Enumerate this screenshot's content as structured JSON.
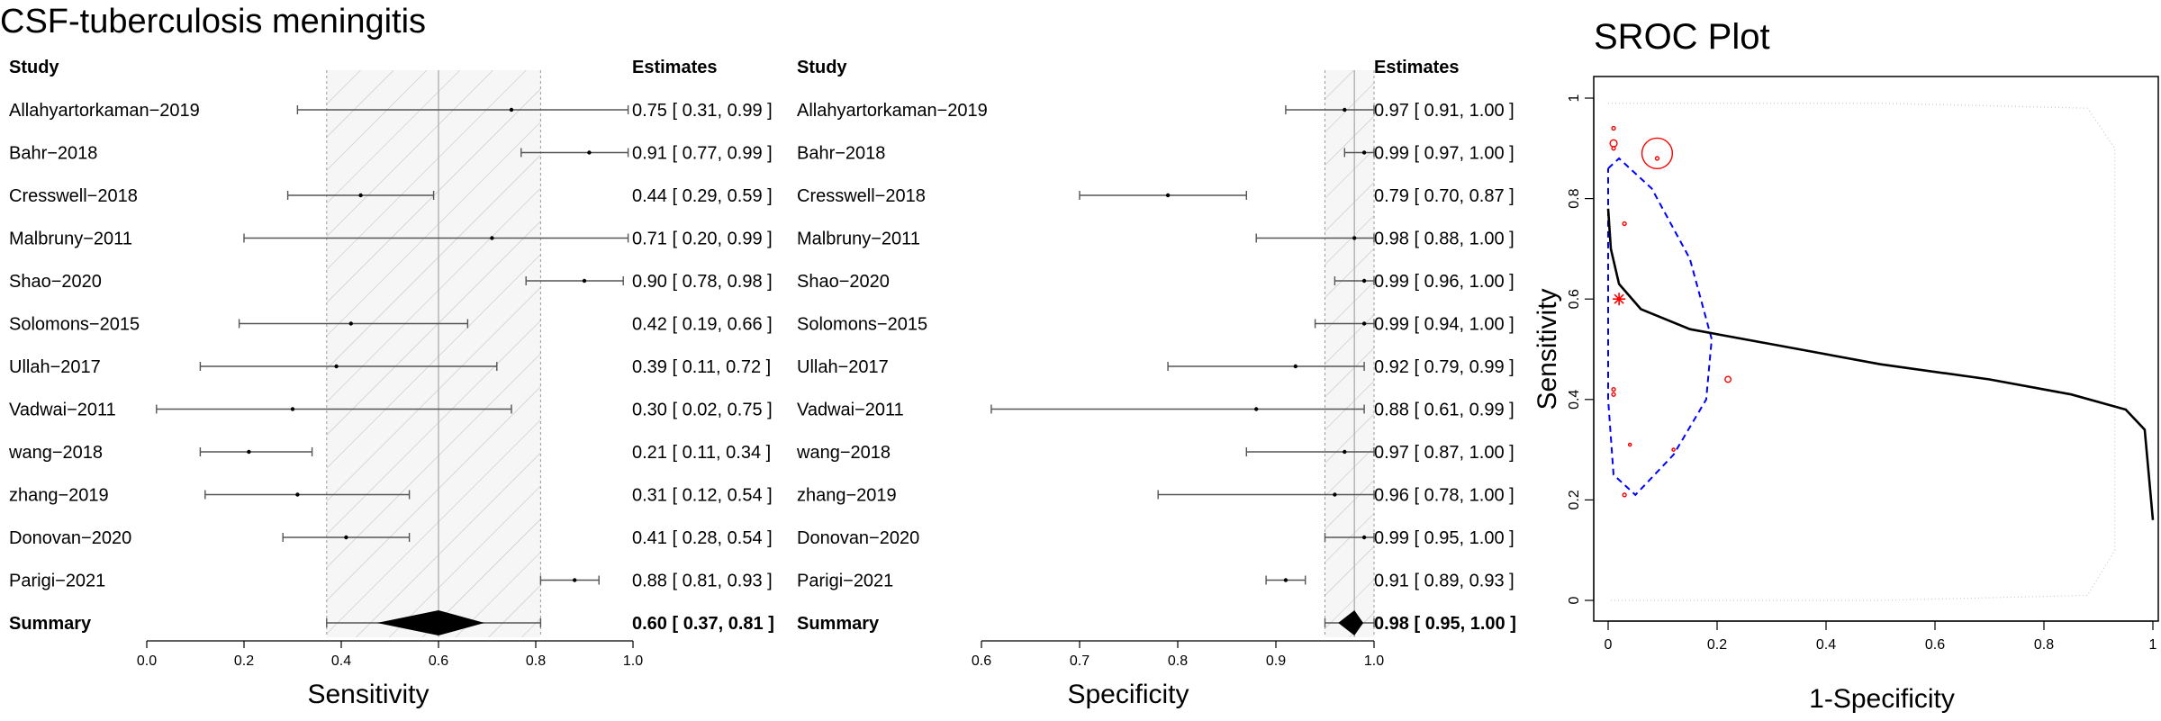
{
  "figure": {
    "main_title": "CSF-tuberculosis meningitis",
    "study_header": "Study",
    "estimates_header": "Estimates"
  },
  "chart_data": [
    {
      "type": "forest",
      "name": "sensitivity",
      "xlabel": "Sensitivity",
      "xlim": [
        0.0,
        1.0
      ],
      "ticks": [
        0.0,
        0.2,
        0.4,
        0.6,
        0.8,
        1.0
      ],
      "tick_labels": [
        "0.0",
        "0.2",
        "0.4",
        "0.6",
        "0.8",
        "1.0"
      ],
      "studies": [
        {
          "name": "Allahyartorkaman−2019",
          "est": 0.75,
          "lo": 0.31,
          "hi": 0.99,
          "text": "0.75 [ 0.31, 0.99 ]"
        },
        {
          "name": "Bahr−2018",
          "est": 0.91,
          "lo": 0.77,
          "hi": 0.99,
          "text": "0.91 [ 0.77, 0.99 ]"
        },
        {
          "name": "Cresswell−2018",
          "est": 0.44,
          "lo": 0.29,
          "hi": 0.59,
          "text": "0.44 [ 0.29, 0.59 ]"
        },
        {
          "name": "Malbruny−2011",
          "est": 0.71,
          "lo": 0.2,
          "hi": 0.99,
          "text": "0.71 [ 0.20, 0.99 ]"
        },
        {
          "name": "Shao−2020",
          "est": 0.9,
          "lo": 0.78,
          "hi": 0.98,
          "text": "0.90 [ 0.78, 0.98 ]"
        },
        {
          "name": "Solomons−2015",
          "est": 0.42,
          "lo": 0.19,
          "hi": 0.66,
          "text": "0.42 [ 0.19, 0.66 ]"
        },
        {
          "name": "Ullah−2017",
          "est": 0.39,
          "lo": 0.11,
          "hi": 0.72,
          "text": "0.39 [ 0.11, 0.72 ]"
        },
        {
          "name": "Vadwai−2011",
          "est": 0.3,
          "lo": 0.02,
          "hi": 0.75,
          "text": "0.30 [ 0.02, 0.75 ]"
        },
        {
          "name": "wang−2018",
          "est": 0.21,
          "lo": 0.11,
          "hi": 0.34,
          "text": "0.21 [ 0.11, 0.34 ]"
        },
        {
          "name": "zhang−2019",
          "est": 0.31,
          "lo": 0.12,
          "hi": 0.54,
          "text": "0.31 [ 0.12, 0.54 ]"
        },
        {
          "name": "Donovan−2020",
          "est": 0.41,
          "lo": 0.28,
          "hi": 0.54,
          "text": "0.41 [ 0.28, 0.54 ]"
        },
        {
          "name": "Parigi−2021",
          "est": 0.88,
          "lo": 0.81,
          "hi": 0.93,
          "text": "0.88 [ 0.81, 0.93 ]"
        }
      ],
      "summary": {
        "name": "Summary",
        "est": 0.6,
        "lo": 0.37,
        "hi": 0.81,
        "text": "0.60 [ 0.37, 0.81 ]"
      }
    },
    {
      "type": "forest",
      "name": "specificity",
      "xlabel": "Specificity",
      "xlim": [
        0.6,
        1.0
      ],
      "ticks": [
        0.6,
        0.7,
        0.8,
        0.9,
        1.0
      ],
      "tick_labels": [
        "0.6",
        "0.7",
        "0.8",
        "0.9",
        "1.0"
      ],
      "studies": [
        {
          "name": "Allahyartorkaman−2019",
          "est": 0.97,
          "lo": 0.91,
          "hi": 1.0,
          "text": "0.97 [ 0.91, 1.00 ]"
        },
        {
          "name": "Bahr−2018",
          "est": 0.99,
          "lo": 0.97,
          "hi": 1.0,
          "text": "0.99 [ 0.97, 1.00 ]"
        },
        {
          "name": "Cresswell−2018",
          "est": 0.79,
          "lo": 0.7,
          "hi": 0.87,
          "text": "0.79 [ 0.70, 0.87 ]"
        },
        {
          "name": "Malbruny−2011",
          "est": 0.98,
          "lo": 0.88,
          "hi": 1.0,
          "text": "0.98 [ 0.88, 1.00 ]"
        },
        {
          "name": "Shao−2020",
          "est": 0.99,
          "lo": 0.96,
          "hi": 1.0,
          "text": "0.99 [ 0.96, 1.00 ]"
        },
        {
          "name": "Solomons−2015",
          "est": 0.99,
          "lo": 0.94,
          "hi": 1.0,
          "text": "0.99 [ 0.94, 1.00 ]"
        },
        {
          "name": "Ullah−2017",
          "est": 0.92,
          "lo": 0.79,
          "hi": 0.99,
          "text": "0.92 [ 0.79, 0.99 ]"
        },
        {
          "name": "Vadwai−2011",
          "est": 0.88,
          "lo": 0.61,
          "hi": 0.99,
          "text": "0.88 [ 0.61, 0.99 ]"
        },
        {
          "name": "wang−2018",
          "est": 0.97,
          "lo": 0.87,
          "hi": 1.0,
          "text": "0.97 [ 0.87, 1.00 ]"
        },
        {
          "name": "zhang−2019",
          "est": 0.96,
          "lo": 0.78,
          "hi": 1.0,
          "text": "0.96 [ 0.78, 1.00 ]"
        },
        {
          "name": "Donovan−2020",
          "est": 0.99,
          "lo": 0.95,
          "hi": 1.0,
          "text": "0.99 [ 0.95, 1.00 ]"
        },
        {
          "name": "Parigi−2021",
          "est": 0.91,
          "lo": 0.89,
          "hi": 0.93,
          "text": "0.91 [ 0.89, 0.93 ]"
        }
      ],
      "summary": {
        "name": "Summary",
        "est": 0.98,
        "lo": 0.95,
        "hi": 1.0,
        "text": "0.98 [ 0.95, 1.00 ]"
      }
    },
    {
      "type": "scatter",
      "name": "sroc",
      "title": "SROC Plot",
      "xlabel": "1-Specificity",
      "ylabel": "Sensitivity",
      "xlim": [
        0,
        1
      ],
      "ylim": [
        0,
        1
      ],
      "xticks": [
        0,
        0.2,
        0.4,
        0.6,
        0.8,
        1
      ],
      "yticks": [
        0,
        0.2,
        0.4,
        0.6,
        0.8,
        1
      ],
      "tick_labels": [
        "0",
        "0.2",
        "0.4",
        "0.6",
        "0.8",
        "1"
      ],
      "points": [
        {
          "fpr": 0.03,
          "sens": 0.75,
          "weight": 0.3
        },
        {
          "fpr": 0.01,
          "sens": 0.91,
          "weight": 0.6
        },
        {
          "fpr": 0.09,
          "sens": 0.89,
          "weight": 2.6
        },
        {
          "fpr": 0.01,
          "sens": 0.94,
          "weight": 0.3
        },
        {
          "fpr": 0.01,
          "sens": 0.9,
          "weight": 0.3
        },
        {
          "fpr": 0.01,
          "sens": 0.42,
          "weight": 0.3
        },
        {
          "fpr": 0.22,
          "sens": 0.44,
          "weight": 0.5
        },
        {
          "fpr": 0.12,
          "sens": 0.3,
          "weight": 0.2
        },
        {
          "fpr": 0.03,
          "sens": 0.21,
          "weight": 0.3
        },
        {
          "fpr": 0.04,
          "sens": 0.31,
          "weight": 0.2
        },
        {
          "fpr": 0.01,
          "sens": 0.41,
          "weight": 0.3
        },
        {
          "fpr": 0.09,
          "sens": 0.88,
          "weight": 0.3
        }
      ],
      "summary_point": {
        "fpr": 0.02,
        "sens": 0.6
      },
      "sroc_curve": [
        [
          0.0,
          0.78
        ],
        [
          0.005,
          0.7
        ],
        [
          0.02,
          0.63
        ],
        [
          0.06,
          0.58
        ],
        [
          0.15,
          0.54
        ],
        [
          0.3,
          0.51
        ],
        [
          0.5,
          0.47
        ],
        [
          0.7,
          0.44
        ],
        [
          0.85,
          0.41
        ],
        [
          0.95,
          0.38
        ],
        [
          0.985,
          0.34
        ],
        [
          1.0,
          0.16
        ]
      ],
      "confidence_region": [
        [
          0.0,
          0.86
        ],
        [
          0.02,
          0.88
        ],
        [
          0.08,
          0.82
        ],
        [
          0.15,
          0.68
        ],
        [
          0.19,
          0.52
        ],
        [
          0.18,
          0.4
        ],
        [
          0.12,
          0.29
        ],
        [
          0.05,
          0.21
        ],
        [
          0.01,
          0.25
        ],
        [
          0.0,
          0.4
        ],
        [
          0.0,
          0.6
        ],
        [
          0.0,
          0.86
        ]
      ],
      "prediction_region": [
        [
          0.0,
          0.99
        ],
        [
          0.5,
          0.99
        ],
        [
          0.88,
          0.98
        ],
        [
          0.93,
          0.9
        ],
        [
          0.93,
          0.5
        ],
        [
          0.93,
          0.1
        ],
        [
          0.88,
          0.01
        ],
        [
          0.5,
          0.0
        ],
        [
          0.0,
          0.0
        ]
      ],
      "colors": {
        "points": "#ff0000",
        "confidence": "#0000ff",
        "curve": "#000000",
        "prediction": "#cccccc"
      }
    }
  ]
}
